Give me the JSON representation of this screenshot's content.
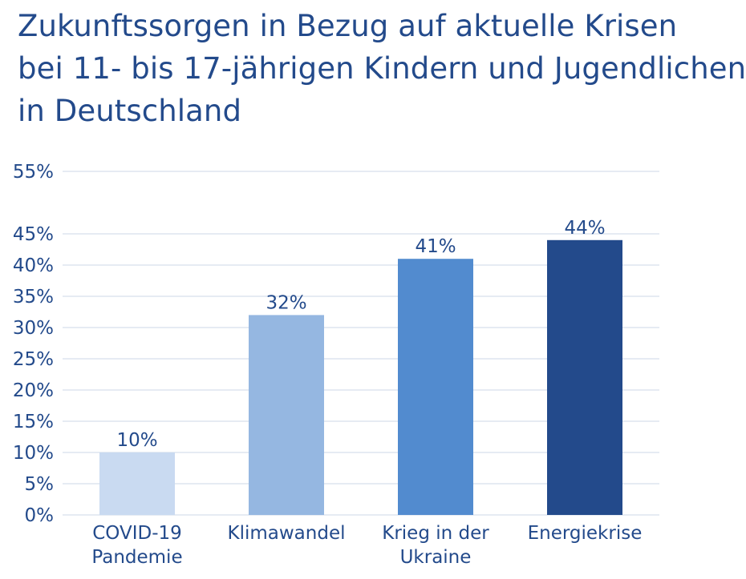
{
  "chart_data": {
    "type": "bar",
    "title_lines": [
      "Zukunftssorgen in Bezug auf aktuelle Krisen",
      "bei 11- bis 17-jährigen Kindern und Jugendlichen",
      "in Deutschland"
    ],
    "categories": [
      [
        "COVID-19",
        "Pandemie"
      ],
      [
        "Klimawandel"
      ],
      [
        "Krieg in der",
        "Ukraine"
      ],
      [
        "Energiekrise"
      ]
    ],
    "values": [
      10,
      32,
      41,
      44
    ],
    "value_labels": [
      "10%",
      "32%",
      "41%",
      "44%"
    ],
    "bar_colors": [
      "#c9daf1",
      "#95b7e1",
      "#528bcf",
      "#234a8b"
    ],
    "yticks": [
      "0%",
      "5%",
      "10%",
      "15%",
      "20%",
      "25%",
      "30%",
      "35%",
      "40%",
      "45%",
      "55%"
    ],
    "ytick_values": [
      0,
      5,
      10,
      15,
      20,
      25,
      30,
      35,
      40,
      45,
      55
    ],
    "ylim": [
      0,
      55
    ],
    "grid": true,
    "legend": "none",
    "colors": {
      "text": "#234a8b",
      "grid": "#d6dfec"
    }
  }
}
